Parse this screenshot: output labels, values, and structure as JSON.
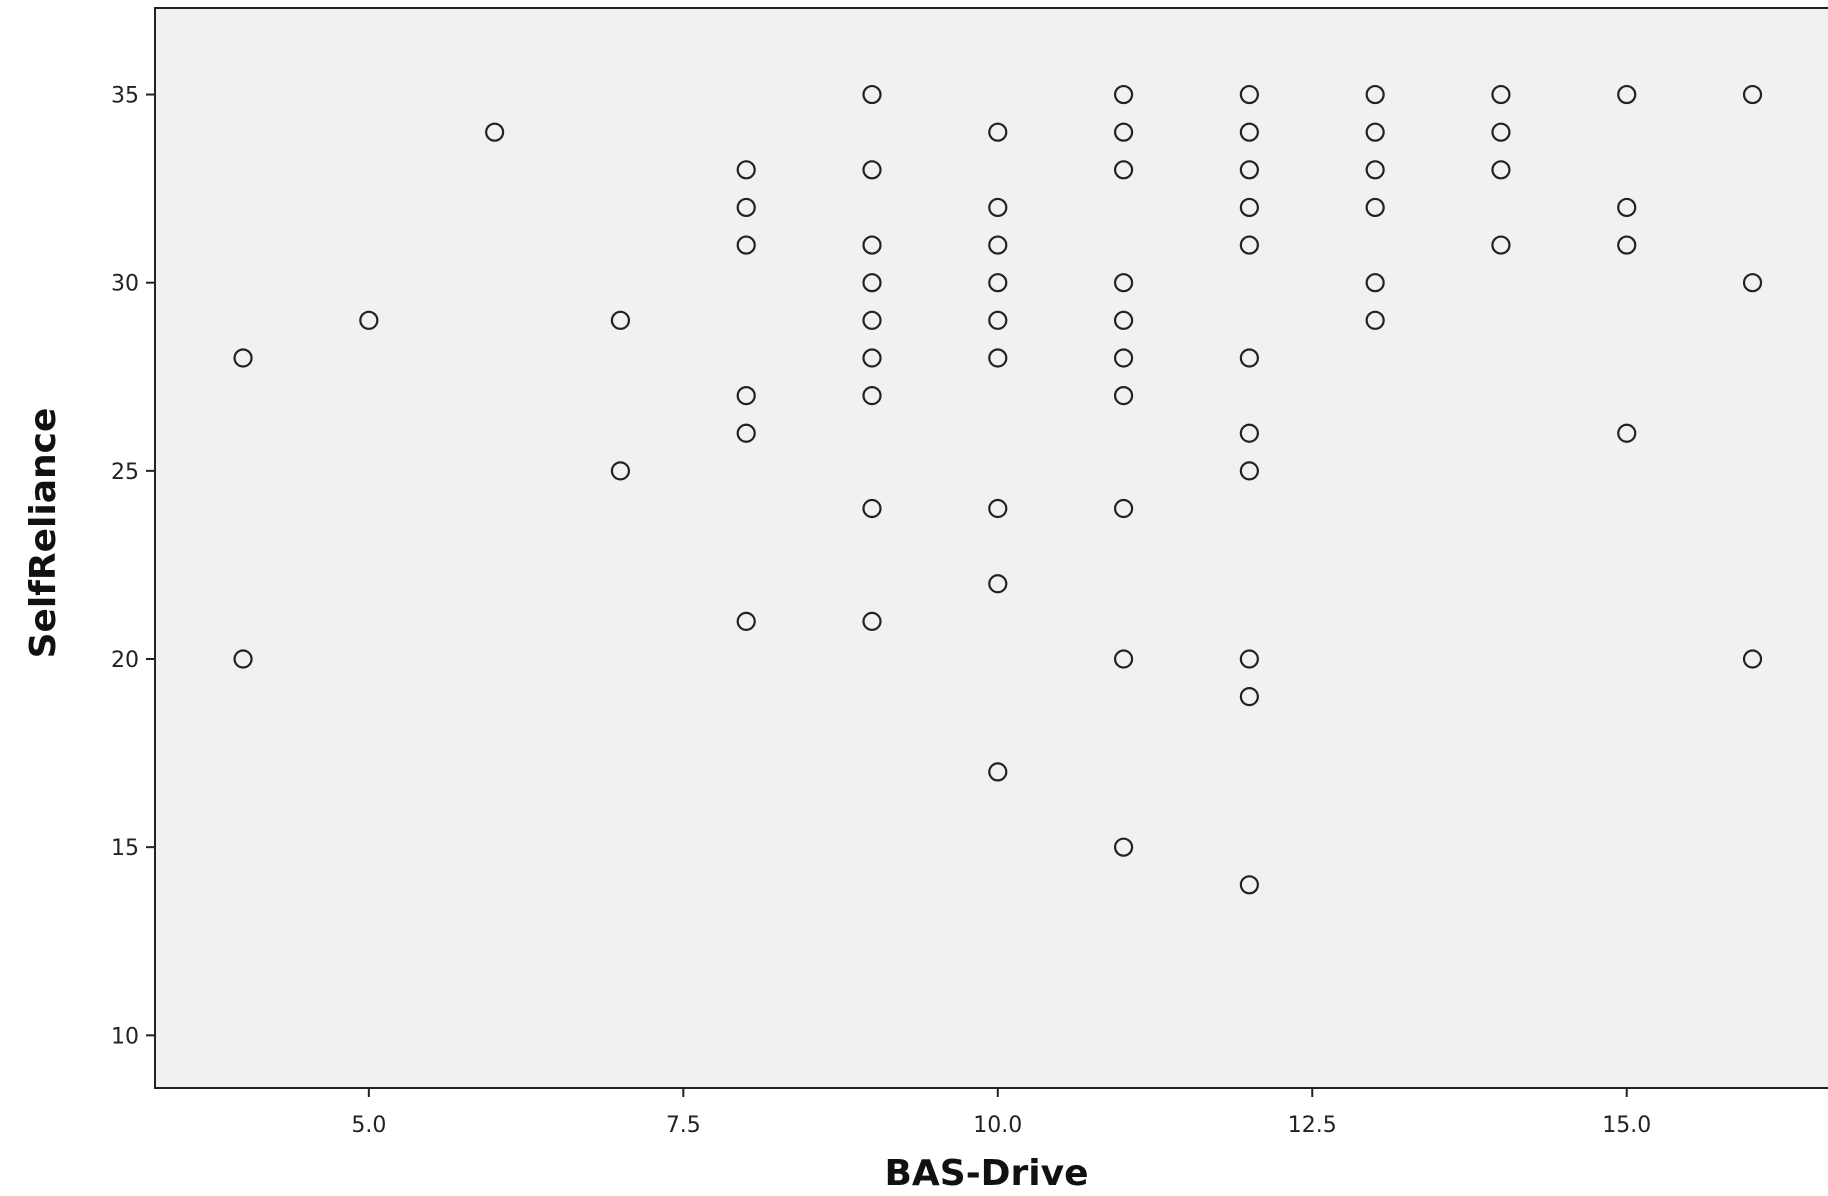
{
  "colors": {
    "plot_background": "#f1f1f1",
    "axis": "#222222",
    "marker_stroke": "#222222",
    "marker_fill": "#f1f1f1"
  },
  "chart_data": {
    "type": "scatter",
    "title": "",
    "xlabel": "BAS-Drive",
    "ylabel": "SelfReliance",
    "xlim": [
      3.3,
      16.6
    ],
    "ylim": [
      8.6,
      37.3
    ],
    "x_ticks": [
      5.0,
      7.5,
      10.0,
      12.5,
      15.0
    ],
    "x_tick_labels": [
      "5.0",
      "7.5",
      "10.0",
      "12.5",
      "15.0"
    ],
    "y_ticks": [
      10,
      15,
      20,
      25,
      30,
      35
    ],
    "y_tick_labels": [
      "10",
      "15",
      "20",
      "25",
      "30",
      "35"
    ],
    "grid": false,
    "legend": "none",
    "marker": "open-circle",
    "points": [
      {
        "x": 4,
        "y": 28
      },
      {
        "x": 4,
        "y": 20
      },
      {
        "x": 5,
        "y": 29
      },
      {
        "x": 6,
        "y": 34
      },
      {
        "x": 7,
        "y": 29
      },
      {
        "x": 7,
        "y": 25
      },
      {
        "x": 8,
        "y": 33
      },
      {
        "x": 8,
        "y": 32
      },
      {
        "x": 8,
        "y": 31
      },
      {
        "x": 8,
        "y": 27
      },
      {
        "x": 8,
        "y": 26
      },
      {
        "x": 8,
        "y": 21
      },
      {
        "x": 9,
        "y": 35
      },
      {
        "x": 9,
        "y": 33
      },
      {
        "x": 9,
        "y": 31
      },
      {
        "x": 9,
        "y": 30
      },
      {
        "x": 9,
        "y": 29
      },
      {
        "x": 9,
        "y": 28
      },
      {
        "x": 9,
        "y": 27
      },
      {
        "x": 9,
        "y": 24
      },
      {
        "x": 9,
        "y": 21
      },
      {
        "x": 10,
        "y": 34
      },
      {
        "x": 10,
        "y": 32
      },
      {
        "x": 10,
        "y": 31
      },
      {
        "x": 10,
        "y": 30
      },
      {
        "x": 10,
        "y": 29
      },
      {
        "x": 10,
        "y": 28
      },
      {
        "x": 10,
        "y": 24
      },
      {
        "x": 10,
        "y": 22
      },
      {
        "x": 10,
        "y": 17
      },
      {
        "x": 11,
        "y": 35
      },
      {
        "x": 11,
        "y": 34
      },
      {
        "x": 11,
        "y": 33
      },
      {
        "x": 11,
        "y": 30
      },
      {
        "x": 11,
        "y": 29
      },
      {
        "x": 11,
        "y": 28
      },
      {
        "x": 11,
        "y": 27
      },
      {
        "x": 11,
        "y": 24
      },
      {
        "x": 11,
        "y": 20
      },
      {
        "x": 11,
        "y": 15
      },
      {
        "x": 12,
        "y": 35
      },
      {
        "x": 12,
        "y": 34
      },
      {
        "x": 12,
        "y": 33
      },
      {
        "x": 12,
        "y": 32
      },
      {
        "x": 12,
        "y": 31
      },
      {
        "x": 12,
        "y": 28
      },
      {
        "x": 12,
        "y": 26
      },
      {
        "x": 12,
        "y": 25
      },
      {
        "x": 12,
        "y": 20
      },
      {
        "x": 12,
        "y": 19
      },
      {
        "x": 12,
        "y": 14
      },
      {
        "x": 13,
        "y": 35
      },
      {
        "x": 13,
        "y": 34
      },
      {
        "x": 13,
        "y": 33
      },
      {
        "x": 13,
        "y": 32
      },
      {
        "x": 13,
        "y": 30
      },
      {
        "x": 13,
        "y": 29
      },
      {
        "x": 14,
        "y": 35
      },
      {
        "x": 14,
        "y": 34
      },
      {
        "x": 14,
        "y": 33
      },
      {
        "x": 14,
        "y": 31
      },
      {
        "x": 15,
        "y": 35
      },
      {
        "x": 15,
        "y": 32
      },
      {
        "x": 15,
        "y": 31
      },
      {
        "x": 15,
        "y": 26
      },
      {
        "x": 16,
        "y": 35
      },
      {
        "x": 16,
        "y": 30
      },
      {
        "x": 16,
        "y": 20
      }
    ]
  }
}
